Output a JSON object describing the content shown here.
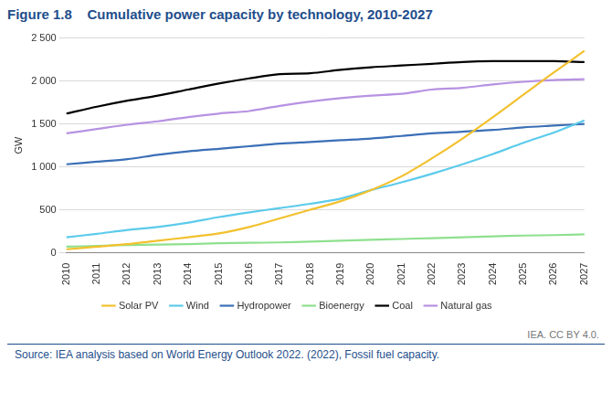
{
  "chart_data": {
    "type": "line",
    "title": "Figure 1.8    Cumulative power capacity by technology, 2010-2027",
    "y_label": "GW",
    "annotations": [
      "IEA. CC BY 4.0.",
      "Source: IEA analysis based on World Energy Outlook 2022. (2022), Fossil fuel capacity."
    ],
    "categories": [
      "2010",
      "2011",
      "2012",
      "2013",
      "2014",
      "2015",
      "2016",
      "2017",
      "2018",
      "2019",
      "2020",
      "2021",
      "2022",
      "2023",
      "2024",
      "2025",
      "2026",
      "2027"
    ],
    "series": [
      {
        "name": "Solar PV",
        "color": "#f2c12e",
        "values": [
          40,
          70,
          100,
          140,
          180,
          225,
          300,
          400,
          500,
          600,
          730,
          890,
          1100,
          1330,
          1580,
          1840,
          2100,
          2350
        ]
      },
      {
        "name": "Wind",
        "color": "#5ccbeb",
        "values": [
          180,
          220,
          265,
          300,
          350,
          415,
          470,
          520,
          570,
          630,
          730,
          820,
          920,
          1030,
          1150,
          1280,
          1400,
          1540
        ]
      },
      {
        "name": "Hydropower",
        "color": "#3b6fb6",
        "values": [
          1030,
          1060,
          1090,
          1140,
          1180,
          1210,
          1240,
          1270,
          1290,
          1310,
          1330,
          1360,
          1390,
          1410,
          1430,
          1460,
          1480,
          1500
        ]
      },
      {
        "name": "Bioenergy",
        "color": "#8fe08f",
        "values": [
          70,
          80,
          90,
          95,
          100,
          110,
          115,
          120,
          130,
          140,
          150,
          160,
          170,
          180,
          190,
          200,
          205,
          215
        ]
      },
      {
        "name": "Coal",
        "color": "#000000",
        "values": [
          1620,
          1700,
          1770,
          1830,
          1900,
          1970,
          2030,
          2080,
          2090,
          2130,
          2160,
          2180,
          2200,
          2220,
          2230,
          2230,
          2230,
          2220
        ]
      },
      {
        "name": "Natural gas",
        "color": "#b792e2",
        "values": [
          1390,
          1440,
          1490,
          1530,
          1580,
          1620,
          1650,
          1710,
          1760,
          1800,
          1830,
          1850,
          1900,
          1920,
          1960,
          1990,
          2010,
          2020
        ]
      }
    ],
    "ylim": [
      0,
      2500
    ],
    "yticks": [
      0,
      500,
      {
        "value": 1000,
        "label": "1 000"
      },
      {
        "value": 1500,
        "label": "1 500"
      },
      {
        "value": 2000,
        "label": "2 000"
      },
      {
        "value": 2500,
        "label": "2 500"
      }
    ],
    "grid": true,
    "legend": "bottom"
  }
}
